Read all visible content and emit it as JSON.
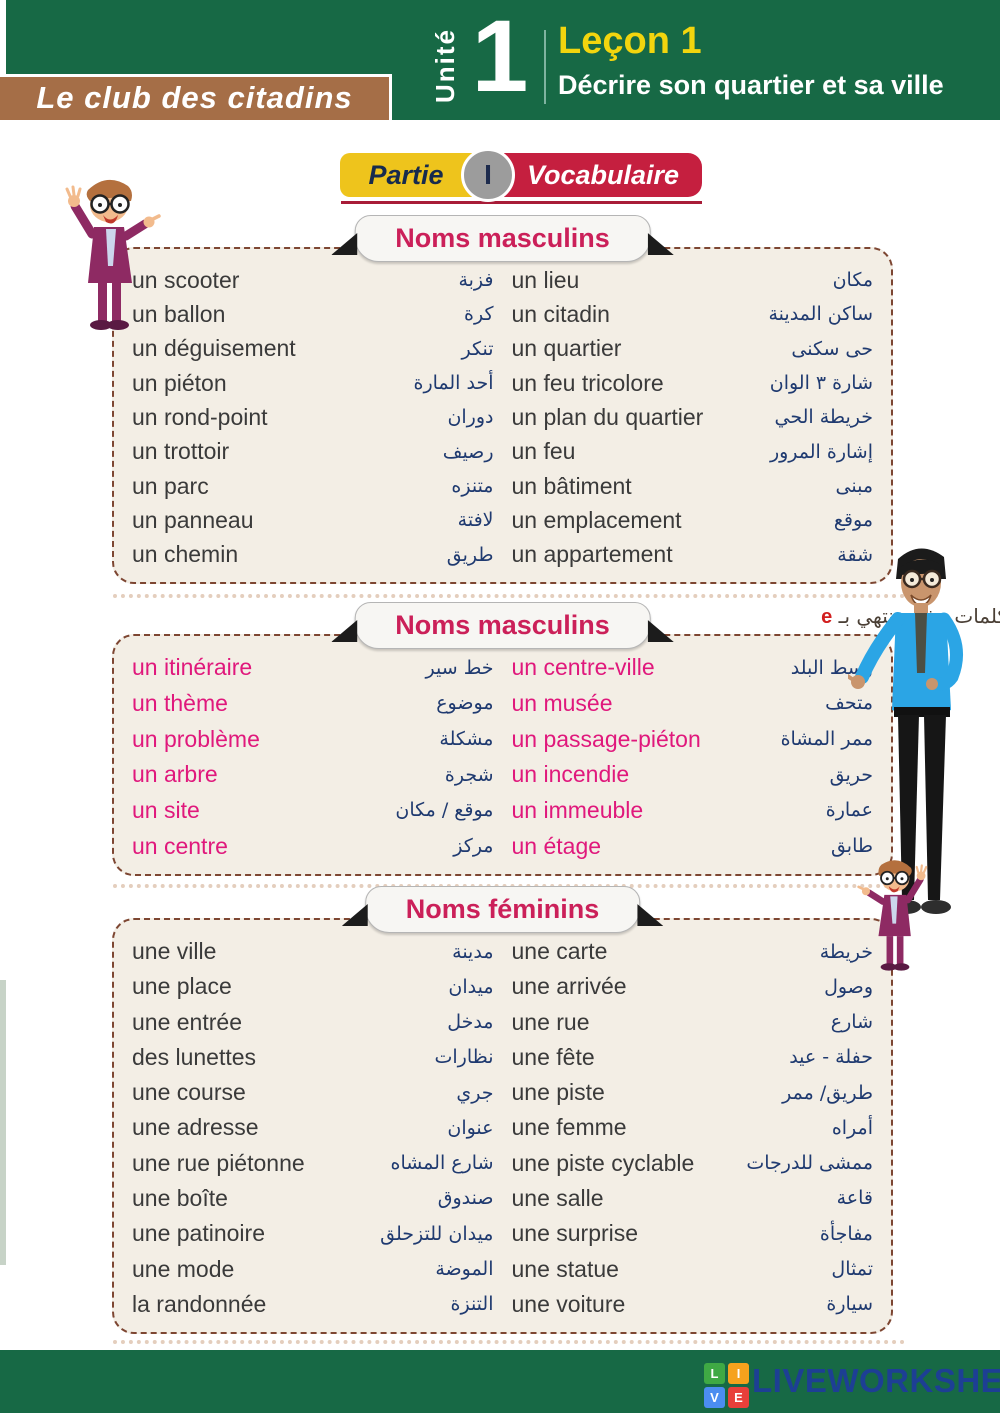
{
  "header": {
    "banner": "Le club des citadins",
    "unit_label": "Unité",
    "unit_number": "1",
    "lesson_title": "Leçon 1",
    "lesson_subtitle": "Décrire son quartier et sa ville"
  },
  "partie": {
    "label": "Partie",
    "numeral": "I",
    "topic": "Vocabulaire"
  },
  "sections": [
    {
      "title": "Noms masculins",
      "style": "dark",
      "left": [
        {
          "fr": "un scooter",
          "ar": "فزبة"
        },
        {
          "fr": "un ballon",
          "ar": "كرة"
        },
        {
          "fr": "un déguisement",
          "ar": "تنكر"
        },
        {
          "fr": "un piéton",
          "ar": "أحد المارة"
        },
        {
          "fr": "un rond-point",
          "ar": "دوران"
        },
        {
          "fr": "un trottoir",
          "ar": "رصيف"
        },
        {
          "fr": "un parc",
          "ar": "متنزه"
        },
        {
          "fr": "un panneau",
          "ar": "لافتة"
        },
        {
          "fr": "un chemin",
          "ar": "طريق"
        }
      ],
      "right": [
        {
          "fr": "un lieu",
          "ar": "مكان"
        },
        {
          "fr": "un citadin",
          "ar": "ساكن المدينة"
        },
        {
          "fr": "un quartier",
          "ar": "حى سكنى"
        },
        {
          "fr": "un feu tricolore",
          "ar": "شارة ٣ الوان"
        },
        {
          "fr": "un plan du quartier",
          "ar": "خريطة الحي"
        },
        {
          "fr": "un feu",
          "ar": "إشارة المرور"
        },
        {
          "fr": "un bâtiment",
          "ar": "مبنى"
        },
        {
          "fr": "un emplacement",
          "ar": "موقع"
        },
        {
          "fr": "un appartement",
          "ar": "شقة"
        }
      ]
    },
    {
      "title": "Noms masculins",
      "style": "pink",
      "note_ar": "كلمات مذكر تنتهي بـ",
      "note_highlight": "e",
      "left": [
        {
          "fr": "un itinéraire",
          "ar": "خط سير"
        },
        {
          "fr": "un thème",
          "ar": "موضوع"
        },
        {
          "fr": "un problème",
          "ar": "مشكلة"
        },
        {
          "fr": "un arbre",
          "ar": "شجرة"
        },
        {
          "fr": "un site",
          "ar": "موقع / مكان"
        },
        {
          "fr": "un centre",
          "ar": "مركز"
        }
      ],
      "right": [
        {
          "fr": "un centre-ville",
          "ar": "وسط البلد"
        },
        {
          "fr": "un musée",
          "ar": "متحف"
        },
        {
          "fr": "un passage-piéton",
          "ar": "ممر المشاة"
        },
        {
          "fr": "un incendie",
          "ar": "حريق"
        },
        {
          "fr": "un immeuble",
          "ar": "عمارة"
        },
        {
          "fr": "un étage",
          "ar": "طابق"
        }
      ]
    },
    {
      "title": "Noms féminins",
      "style": "dark",
      "left": [
        {
          "fr": "une ville",
          "ar": "مدينة"
        },
        {
          "fr": "une place",
          "ar": "ميدان"
        },
        {
          "fr": "une entrée",
          "ar": "مدخل"
        },
        {
          "fr": "des lunettes",
          "ar": "نظارات"
        },
        {
          "fr": "une course",
          "ar": "جري"
        },
        {
          "fr": "une adresse",
          "ar": "عنوان"
        },
        {
          "fr": "une rue piétonne",
          "ar": "شارع المشاه"
        },
        {
          "fr": "une boîte",
          "ar": "صندوق"
        },
        {
          "fr": "une patinoire",
          "ar": "ميدان للتزحلق"
        },
        {
          "fr": "une mode",
          "ar": "الموضة"
        },
        {
          "fr": "la randonnée",
          "ar": "التنزة"
        }
      ],
      "right": [
        {
          "fr": "une carte",
          "ar": "خريطة"
        },
        {
          "fr": "une arrivée",
          "ar": "وصول"
        },
        {
          "fr": "une rue",
          "ar": "شارع"
        },
        {
          "fr": "une fête",
          "ar": "حفلة - عيد"
        },
        {
          "fr": "une piste",
          "ar": "طريق/ ممر"
        },
        {
          "fr": "une femme",
          "ar": "أمراه"
        },
        {
          "fr": "une piste cyclable",
          "ar": "ممشى للدرجات"
        },
        {
          "fr": "une salle",
          "ar": "قاعة"
        },
        {
          "fr": "une surprise",
          "ar": "مفاجأة"
        },
        {
          "fr": "une statue",
          "ar": "تمثال"
        },
        {
          "fr": "une voiture",
          "ar": "سيارة"
        }
      ]
    }
  ],
  "footer": {
    "brand": "LIVEWORKSHEETS",
    "logo_letters": [
      "L",
      "I",
      "V",
      "E"
    ]
  },
  "colors": {
    "header_green": "#176945",
    "banner_brown": "#a56e47",
    "lesson_yellow": "#f2d50e",
    "badge_yellow": "#eec41c",
    "badge_red": "#c51f3f",
    "title_crimson": "#cb2059",
    "word_pink": "#e0187c",
    "arabic_navy": "#1f3a70",
    "box_beige": "#f3eee5",
    "dash_brown": "#7d4632",
    "brand_blue": "#1d3f94"
  }
}
